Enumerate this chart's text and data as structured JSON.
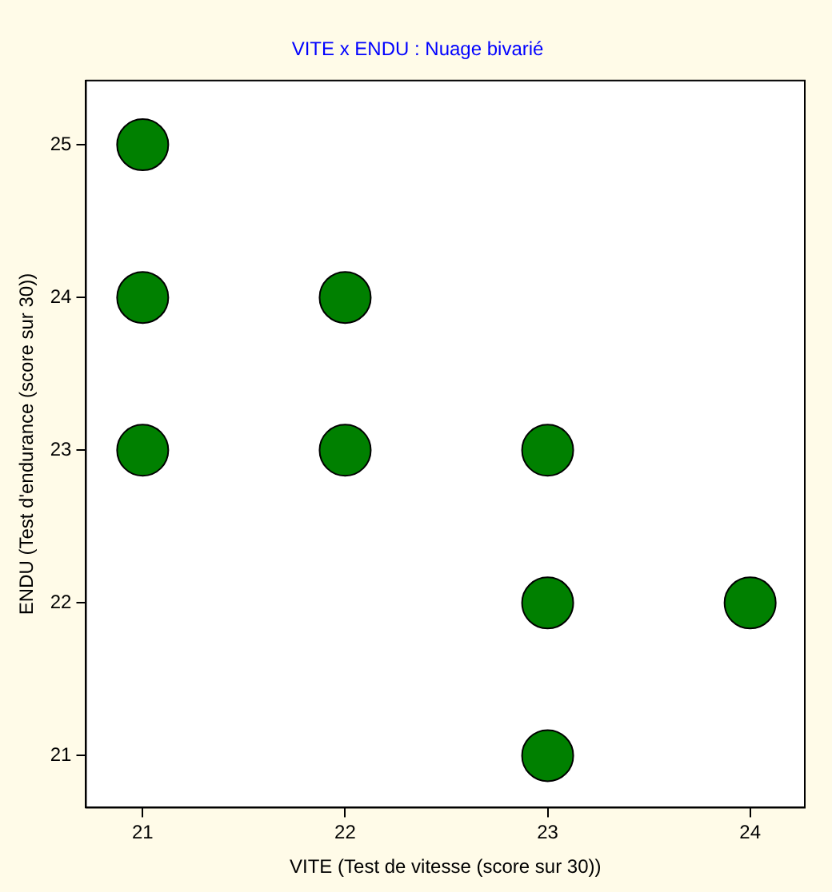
{
  "chart_data": {
    "type": "scatter",
    "title": "VITE x ENDU : Nuage bivarié",
    "xlabel": "VITE (Test de vitesse (score sur 30))",
    "ylabel": "ENDU (Test d'endurance (score sur 30))",
    "x": [
      21,
      21,
      22,
      21,
      22,
      23,
      23,
      24,
      23
    ],
    "series": [
      {
        "color": "#008000",
        "values": [
          25,
          24,
          24,
          23,
          23,
          23,
          22,
          22,
          21
        ]
      }
    ],
    "xlim": [
      20.72,
      24.27
    ],
    "xticks": [
      21,
      22,
      23,
      24
    ],
    "ylim": [
      20.66,
      25.42
    ],
    "yticks": [
      21,
      22,
      23,
      24,
      25
    ],
    "grid": false,
    "legend": false,
    "marker": "circle"
  }
}
